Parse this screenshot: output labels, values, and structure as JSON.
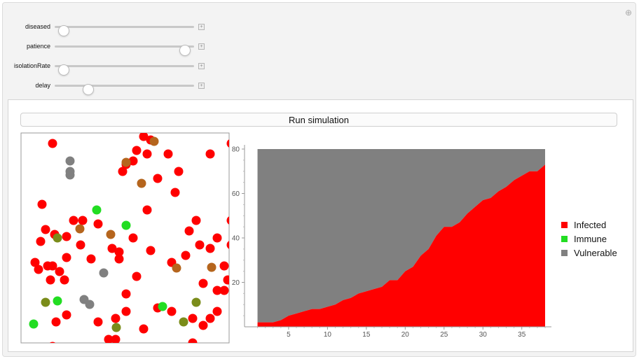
{
  "controls": [
    {
      "label": "diseased",
      "fraction": 0.03
    },
    {
      "label": "patience",
      "fraction": 0.97
    },
    {
      "label": "isolationRate",
      "fraction": 0.03
    },
    {
      "label": "delay",
      "fraction": 0.22
    }
  ],
  "corner_icon": "plus-circle-icon",
  "run_button": {
    "label": "Run simulation"
  },
  "legend": [
    {
      "label": "Infected",
      "color": "#ff0000"
    },
    {
      "label": "Immune",
      "color": "#22dd22"
    },
    {
      "label": "Vulnerable",
      "color": "#808080"
    }
  ],
  "colors": {
    "infected": "#ff0000",
    "immune": "#22dd22",
    "vulnerable": "#808080",
    "recovering_brown": "#b5651d",
    "recovering_olive": "#7a8c1a"
  },
  "simulation": {
    "particles": [
      {
        "x": 25,
        "y": 195,
        "c": "#ff0000"
      },
      {
        "x": 42,
        "y": 210,
        "c": "#ff0000"
      },
      {
        "x": 62,
        "y": 210,
        "c": "#ff0000"
      },
      {
        "x": 55,
        "y": 198,
        "c": "#ff0000"
      },
      {
        "x": 45,
        "y": 190,
        "c": "#ff0000"
      },
      {
        "x": 20,
        "y": 185,
        "c": "#ff0000"
      },
      {
        "x": 35,
        "y": 138,
        "c": "#ff0000"
      },
      {
        "x": 65,
        "y": 178,
        "c": "#ff0000"
      },
      {
        "x": 38,
        "y": 190,
        "c": "#ff0000"
      },
      {
        "x": 65,
        "y": 148,
        "c": "#ff0000"
      },
      {
        "x": 48,
        "y": 145,
        "c": "#ff0000"
      },
      {
        "x": 30,
        "y": 102,
        "c": "#ff0000"
      },
      {
        "x": 160,
        "y": 40,
        "c": "#ff0000"
      },
      {
        "x": 180,
        "y": 30,
        "c": "#ff0000"
      },
      {
        "x": 145,
        "y": 55,
        "c": "#ff0000"
      },
      {
        "x": 180,
        "y": 110,
        "c": "#ff0000"
      },
      {
        "x": 195,
        "y": 65,
        "c": "#ff0000"
      },
      {
        "x": 210,
        "y": 30,
        "c": "#ff0000"
      },
      {
        "x": 225,
        "y": 55,
        "c": "#ff0000"
      },
      {
        "x": 250,
        "y": 125,
        "c": "#ff0000"
      },
      {
        "x": 270,
        "y": 30,
        "c": "#ff0000"
      },
      {
        "x": 300,
        "y": 15,
        "c": "#ff0000"
      },
      {
        "x": 220,
        "y": 85,
        "c": "#ff0000"
      },
      {
        "x": 240,
        "y": 140,
        "c": "#ff0000"
      },
      {
        "x": 255,
        "y": 160,
        "c": "#ff0000"
      },
      {
        "x": 270,
        "y": 165,
        "c": "#ff0000"
      },
      {
        "x": 290,
        "y": 190,
        "c": "#ff0000"
      },
      {
        "x": 300,
        "y": 160,
        "c": "#ff0000"
      },
      {
        "x": 310,
        "y": 180,
        "c": "#ff0000"
      },
      {
        "x": 280,
        "y": 150,
        "c": "#ff0000"
      },
      {
        "x": 235,
        "y": 175,
        "c": "#ff0000"
      },
      {
        "x": 215,
        "y": 185,
        "c": "#ff0000"
      },
      {
        "x": 260,
        "y": 215,
        "c": "#ff0000"
      },
      {
        "x": 280,
        "y": 225,
        "c": "#ff0000"
      },
      {
        "x": 295,
        "y": 210,
        "c": "#ff0000"
      },
      {
        "x": 245,
        "y": 265,
        "c": "#ff0000"
      },
      {
        "x": 270,
        "y": 265,
        "c": "#ff0000"
      },
      {
        "x": 280,
        "y": 255,
        "c": "#ff0000"
      },
      {
        "x": 195,
        "y": 250,
        "c": "#ff0000"
      },
      {
        "x": 175,
        "y": 280,
        "c": "#ff0000"
      },
      {
        "x": 215,
        "y": 255,
        "c": "#ff0000"
      },
      {
        "x": 160,
        "y": 150,
        "c": "#ff0000"
      },
      {
        "x": 140,
        "y": 180,
        "c": "#ff0000"
      },
      {
        "x": 165,
        "y": 205,
        "c": "#ff0000"
      },
      {
        "x": 150,
        "y": 230,
        "c": "#ff0000"
      },
      {
        "x": 135,
        "y": 265,
        "c": "#ff0000"
      },
      {
        "x": 150,
        "y": 255,
        "c": "#ff0000"
      },
      {
        "x": 110,
        "y": 270,
        "c": "#ff0000"
      },
      {
        "x": 125,
        "y": 295,
        "c": "#ff0000"
      },
      {
        "x": 135,
        "y": 295,
        "c": "#ff0000"
      },
      {
        "x": 65,
        "y": 260,
        "c": "#ff0000"
      },
      {
        "x": 50,
        "y": 270,
        "c": "#ff0000"
      },
      {
        "x": 45,
        "y": 305,
        "c": "#ff0000"
      },
      {
        "x": 245,
        "y": 300,
        "c": "#ff0000"
      },
      {
        "x": 260,
        "y": 275,
        "c": "#ff0000"
      },
      {
        "x": 310,
        "y": 305,
        "c": "#ff0000"
      },
      {
        "x": 110,
        "y": 130,
        "c": "#ff0000"
      },
      {
        "x": 75,
        "y": 125,
        "c": "#ff0000"
      },
      {
        "x": 85,
        "y": 160,
        "c": "#ff0000"
      },
      {
        "x": 165,
        "y": 25,
        "c": "#ff0000"
      },
      {
        "x": 175,
        "y": 5,
        "c": "#ff0000"
      },
      {
        "x": 185,
        "y": 10,
        "c": "#ff0000"
      },
      {
        "x": 150,
        "y": 45,
        "c": "#ff0000"
      },
      {
        "x": 45,
        "y": 15,
        "c": "#ff0000"
      },
      {
        "x": 88,
        "y": 125,
        "c": "#ff0000"
      },
      {
        "x": 28,
        "y": 155,
        "c": "#ff0000"
      },
      {
        "x": 310,
        "y": 105,
        "c": "#ff0000"
      },
      {
        "x": 300,
        "y": 125,
        "c": "#ff0000"
      },
      {
        "x": 305,
        "y": 80,
        "c": "#ff0000"
      },
      {
        "x": 140,
        "y": 170,
        "c": "#ff0000"
      },
      {
        "x": 130,
        "y": 165,
        "c": "#ff0000"
      },
      {
        "x": 290,
        "y": 225,
        "c": "#ff0000"
      },
      {
        "x": 185,
        "y": 168,
        "c": "#ff0000"
      },
      {
        "x": 100,
        "y": 180,
        "c": "#ff0000"
      },
      {
        "x": 190,
        "y": 12,
        "c": "#b5651d"
      },
      {
        "x": 150,
        "y": 42,
        "c": "#b5651d"
      },
      {
        "x": 172,
        "y": 72,
        "c": "#b5651d"
      },
      {
        "x": 310,
        "y": 83,
        "c": "#b5651d"
      },
      {
        "x": 222,
        "y": 193,
        "c": "#b5651d"
      },
      {
        "x": 272,
        "y": 192,
        "c": "#b5651d"
      },
      {
        "x": 84,
        "y": 137,
        "c": "#b5651d"
      },
      {
        "x": 128,
        "y": 145,
        "c": "#b5651d"
      },
      {
        "x": 52,
        "y": 150,
        "c": "#7a8c1a"
      },
      {
        "x": 35,
        "y": 242,
        "c": "#7a8c1a"
      },
      {
        "x": 250,
        "y": 242,
        "c": "#7a8c1a"
      },
      {
        "x": 232,
        "y": 270,
        "c": "#7a8c1a"
      },
      {
        "x": 136,
        "y": 278,
        "c": "#7a8c1a"
      },
      {
        "x": 108,
        "y": 110,
        "c": "#22dd22"
      },
      {
        "x": 150,
        "y": 132,
        "c": "#22dd22"
      },
      {
        "x": 52,
        "y": 240,
        "c": "#22dd22"
      },
      {
        "x": 202,
        "y": 248,
        "c": "#22dd22"
      },
      {
        "x": 18,
        "y": 273,
        "c": "#22dd22"
      },
      {
        "x": 70,
        "y": 40,
        "c": "#808080"
      },
      {
        "x": 70,
        "y": 55,
        "c": "#808080"
      },
      {
        "x": 70,
        "y": 60,
        "c": "#808080"
      },
      {
        "x": 118,
        "y": 200,
        "c": "#808080"
      },
      {
        "x": 90,
        "y": 238,
        "c": "#808080"
      },
      {
        "x": 98,
        "y": 245,
        "c": "#808080"
      }
    ]
  },
  "chart_data": {
    "type": "area",
    "title": "",
    "xlabel": "",
    "ylabel": "",
    "xlim": [
      0.5,
      38
    ],
    "ylim": [
      0,
      80
    ],
    "x_ticks": [
      5,
      10,
      15,
      20,
      25,
      30,
      35
    ],
    "y_ticks": [
      20,
      40,
      60,
      80
    ],
    "x": [
      1,
      2,
      3,
      4,
      5,
      6,
      7,
      8,
      9,
      10,
      11,
      12,
      13,
      14,
      15,
      16,
      17,
      18,
      19,
      20,
      21,
      22,
      23,
      24,
      25,
      26,
      27,
      28,
      29,
      30,
      31,
      32,
      33,
      34,
      35,
      36,
      37,
      38
    ],
    "series": [
      {
        "name": "Infected",
        "values": [
          2,
          2,
          2,
          3,
          5,
          6,
          7,
          8,
          8,
          9,
          10,
          12,
          13,
          15,
          16,
          17,
          18,
          21,
          21,
          25,
          27,
          32,
          35,
          41,
          45,
          45,
          47,
          51,
          54,
          57,
          58,
          61,
          63,
          66,
          68,
          70,
          70,
          73
        ]
      },
      {
        "name": "Immune",
        "values": [
          0,
          0,
          0,
          0,
          0,
          0,
          0,
          0,
          0,
          0,
          0,
          0,
          0,
          0,
          0,
          0,
          0,
          0,
          0,
          0,
          0,
          0,
          0,
          0,
          0,
          0,
          0,
          0,
          0,
          0,
          0,
          0,
          0,
          0,
          0,
          0,
          0,
          0
        ]
      },
      {
        "name": "Vulnerable",
        "values": [
          78,
          78,
          78,
          77,
          75,
          74,
          73,
          72,
          72,
          71,
          70,
          68,
          67,
          65,
          64,
          63,
          62,
          59,
          59,
          55,
          53,
          48,
          45,
          39,
          35,
          35,
          33,
          29,
          26,
          23,
          22,
          19,
          17,
          14,
          12,
          10,
          10,
          7
        ]
      }
    ]
  }
}
